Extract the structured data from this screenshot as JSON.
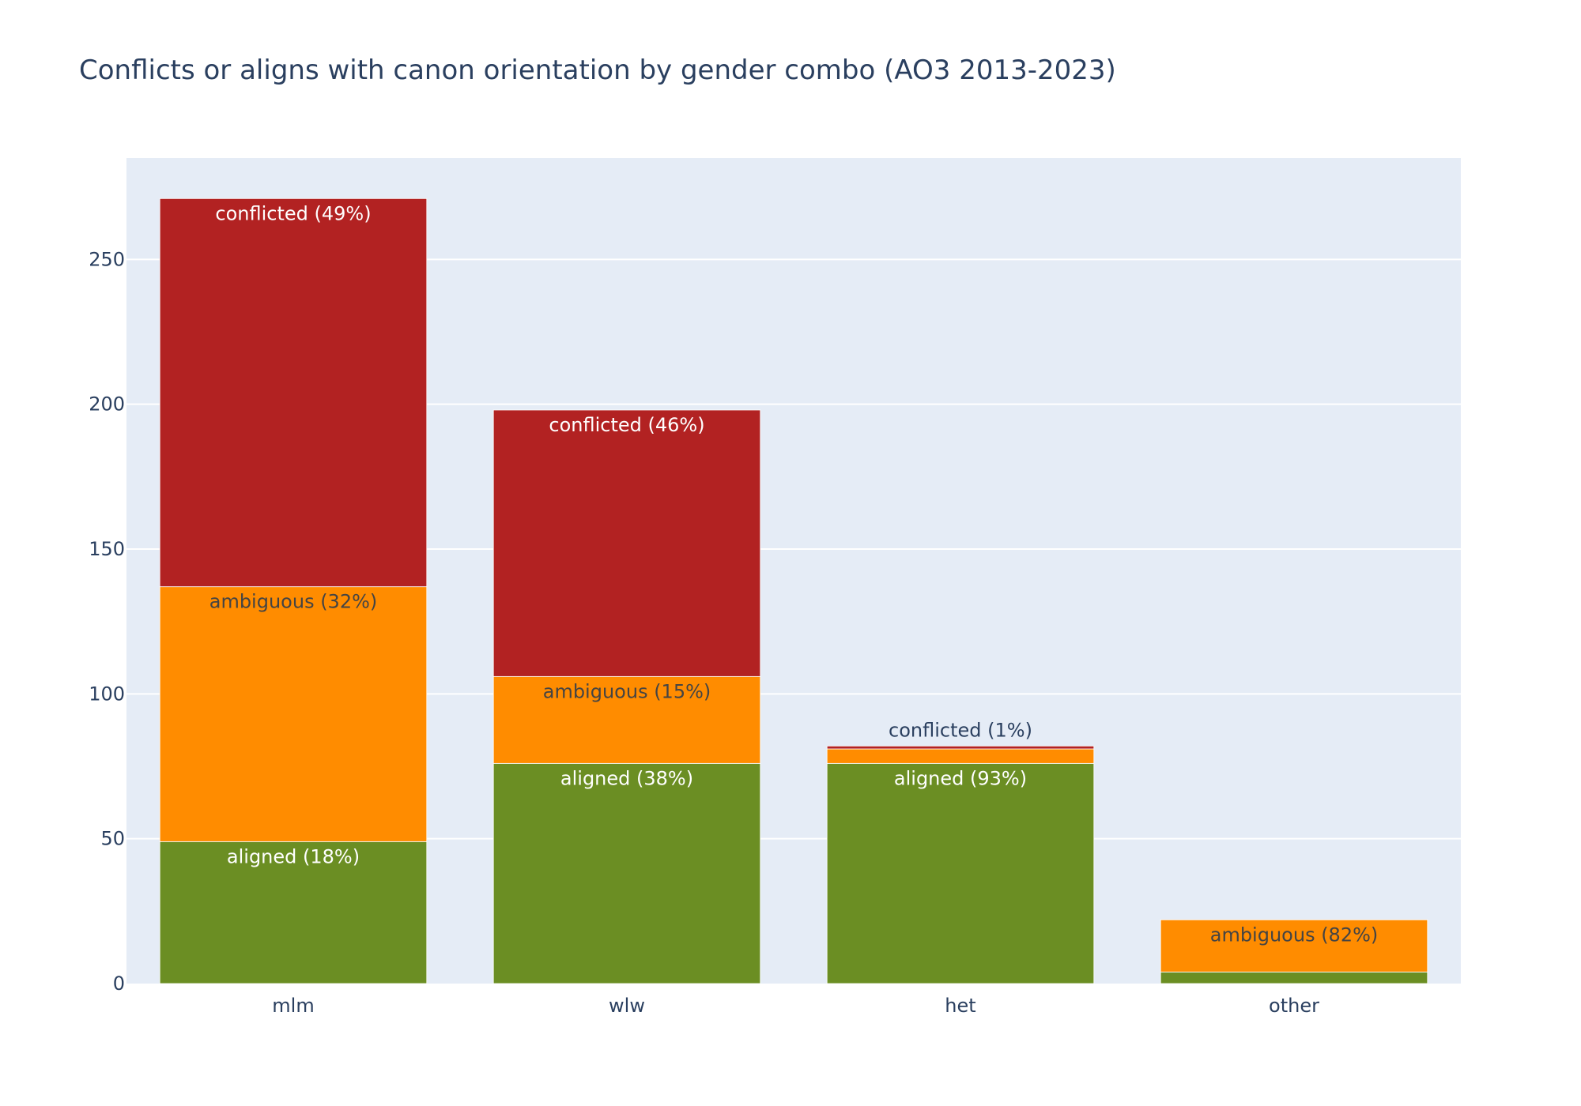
{
  "chart_data": {
    "type": "bar",
    "barmode": "stack",
    "title": "Conflicts or aligns with canon orientation by gender combo (AO3 2013-2023)",
    "xlabel": "",
    "ylabel": "",
    "categories": [
      "mlm",
      "wlw",
      "het",
      "other"
    ],
    "ylim": [
      0,
      285
    ],
    "yticks": [
      0,
      50,
      100,
      150,
      200,
      250
    ],
    "grid": true,
    "plot_bgcolor": "#e5ecf6",
    "series": [
      {
        "name": "aligned",
        "color": "#6b8e23",
        "values": [
          49,
          76,
          76,
          4
        ],
        "labels": [
          "aligned (18%)",
          "aligned (38%)",
          "aligned (93%)",
          ""
        ],
        "label_color": "#ffffff",
        "label_position": "inside"
      },
      {
        "name": "ambiguous",
        "color": "#ff8c00",
        "values": [
          88,
          30,
          5,
          18
        ],
        "labels": [
          "ambiguous (32%)",
          "ambiguous (15%)",
          "",
          "ambiguous (82%)"
        ],
        "label_color": "#444444",
        "label_position": "inside"
      },
      {
        "name": "conflicted",
        "color": "#b22222",
        "values": [
          134,
          92,
          1,
          0
        ],
        "labels": [
          "conflicted (49%)",
          "conflicted (46%)",
          "conflicted (1%)",
          ""
        ],
        "label_color": "#ffffff",
        "label_position": "inside",
        "outside_label_color": "#2a3f5f"
      }
    ]
  }
}
